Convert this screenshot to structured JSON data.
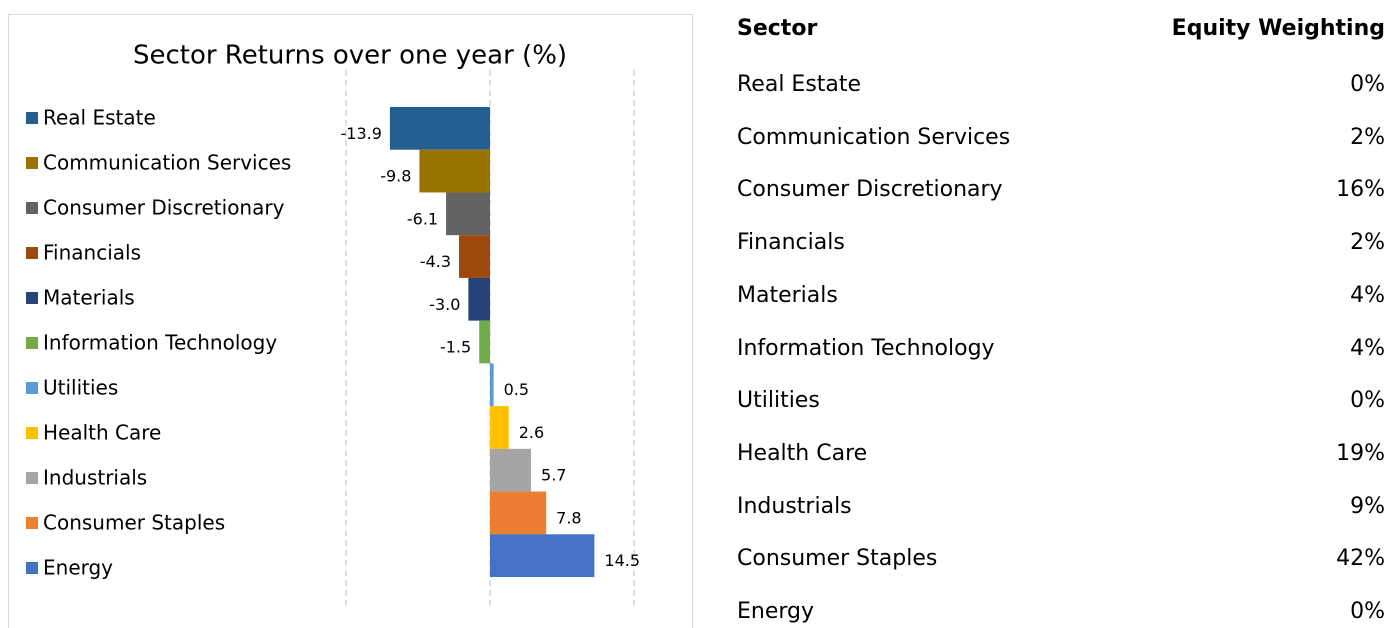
{
  "chart_data": {
    "type": "bar",
    "orientation": "horizontal",
    "title": "Sector Returns over one year (%)",
    "categories": [
      "Real Estate",
      "Communication Services",
      "Consumer Discretionary",
      "Financials",
      "Materials",
      "Information Technology",
      "Utilities",
      "Health Care",
      "Industrials",
      "Consumer Staples",
      "Energy"
    ],
    "values": [
      -13.9,
      -9.8,
      -6.1,
      -4.3,
      -3.0,
      -1.5,
      0.5,
      2.6,
      5.7,
      7.8,
      14.5
    ],
    "value_labels": [
      "-13.9",
      "-9.8",
      "-6.1",
      "-4.3",
      "-3.0",
      "-1.5",
      "0.5",
      "2.6",
      "5.7",
      "7.8",
      "14.5"
    ],
    "colors": [
      "#255e91",
      "#997300",
      "#636363",
      "#9e480e",
      "#264478",
      "#70ad47",
      "#5b9bd5",
      "#ffc000",
      "#a5a5a5",
      "#ed7d31",
      "#4472c4"
    ],
    "xlim": [
      -20,
      20
    ],
    "xticks": [
      -20,
      0,
      20
    ],
    "grid": true
  },
  "table": {
    "header": [
      "Sector",
      "Equity Weighting"
    ],
    "rows": [
      [
        "Real Estate",
        "0%"
      ],
      [
        "Communication Services",
        "2%"
      ],
      [
        "Consumer Discretionary",
        "16%"
      ],
      [
        "Financials",
        "2%"
      ],
      [
        "Materials",
        "4%"
      ],
      [
        "Information Technology",
        "4%"
      ],
      [
        "Utilities",
        "0%"
      ],
      [
        "Health Care",
        "19%"
      ],
      [
        "Industrials",
        "9%"
      ],
      [
        "Consumer Staples",
        "42%"
      ],
      [
        "Energy",
        "0%"
      ]
    ]
  }
}
